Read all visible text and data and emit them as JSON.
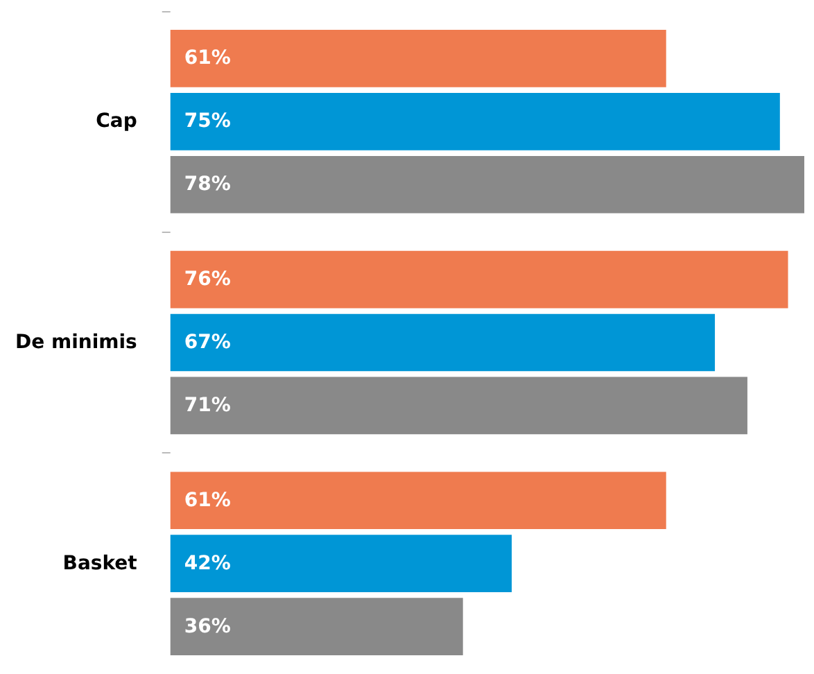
{
  "chart_data": {
    "type": "bar",
    "orientation": "horizontal",
    "categories": [
      "Cap",
      "De minimis",
      "Basket"
    ],
    "xlim": [
      0,
      78
    ],
    "tick_labels": "y",
    "series": [
      {
        "color": "#ef7b4f",
        "values": [
          61,
          76,
          61
        ],
        "value_labels": [
          "61%",
          "76%",
          "61%"
        ]
      },
      {
        "color": "#0096d6",
        "values": [
          75,
          67,
          42
        ],
        "value_labels": [
          "75%",
          "67%",
          "42%"
        ]
      },
      {
        "color": "#898989",
        "values": [
          78,
          71,
          36
        ],
        "value_labels": [
          "78%",
          "71%",
          "36%"
        ]
      }
    ]
  }
}
